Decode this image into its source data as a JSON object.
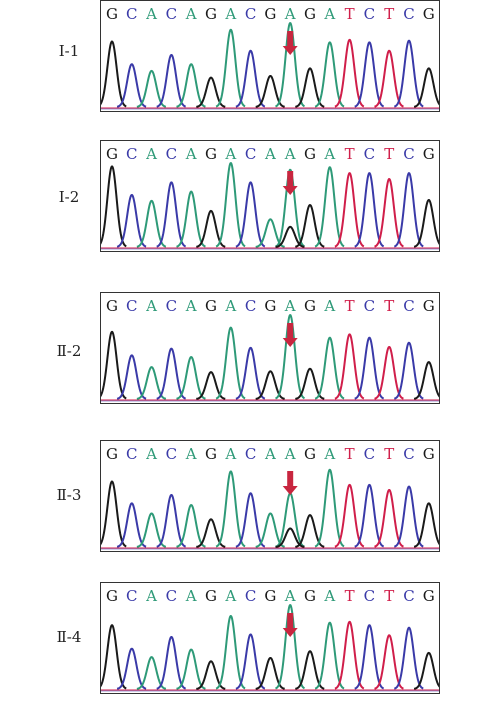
{
  "figure": {
    "colors": {
      "G": "#1a1a1a",
      "A": "#2e9a78",
      "C": "#3a3aa8",
      "T": "#d01e4a",
      "arrow": "#c8263f",
      "baseline_red": "#d01e4a",
      "baseline_blue": "#3a3aa8"
    },
    "icons": {
      "arrow": "arrow-down-icon"
    }
  },
  "chart_data": [
    {
      "type": "line",
      "label": "Ⅰ-1",
      "bases": [
        "G",
        "C",
        "A",
        "C",
        "A",
        "G",
        "A",
        "C",
        "G",
        "A",
        "G",
        "A",
        "T",
        "C",
        "T",
        "C",
        "G"
      ],
      "peak_heights": [
        0.78,
        0.51,
        0.43,
        0.62,
        0.51,
        0.35,
        0.92,
        0.67,
        0.37,
        1.0,
        0.46,
        0.77,
        0.8,
        0.77,
        0.67,
        0.79,
        0.46
      ],
      "secondary_peaks": [],
      "arrow_position": 9
    },
    {
      "type": "line",
      "label": "Ⅰ-2",
      "bases": [
        "G",
        "C",
        "A",
        "C",
        "A",
        "G",
        "A",
        "C",
        "A",
        "A",
        "G",
        "A",
        "T",
        "C",
        "T",
        "C",
        "G"
      ],
      "peak_heights": [
        0.96,
        0.62,
        0.55,
        0.77,
        0.66,
        0.43,
        1.0,
        0.77,
        0.33,
        0.92,
        0.5,
        0.95,
        0.88,
        0.88,
        0.81,
        0.88,
        0.56
      ],
      "secondary_peaks": [
        {
          "position": 9,
          "base": "G",
          "height": 0.24
        }
      ],
      "arrow_position": 9
    },
    {
      "type": "line",
      "label": "Ⅱ-2",
      "bases": [
        "G",
        "C",
        "A",
        "C",
        "A",
        "G",
        "A",
        "C",
        "G",
        "A",
        "G",
        "A",
        "T",
        "C",
        "T",
        "C",
        "G"
      ],
      "peak_heights": [
        0.8,
        0.52,
        0.38,
        0.6,
        0.5,
        0.32,
        0.85,
        0.61,
        0.33,
        1.0,
        0.36,
        0.73,
        0.77,
        0.73,
        0.62,
        0.67,
        0.44
      ],
      "secondary_peaks": [],
      "arrow_position": 9
    },
    {
      "type": "line",
      "label": "Ⅱ-3",
      "bases": [
        "G",
        "C",
        "A",
        "C",
        "A",
        "G",
        "A",
        "C",
        "A",
        "A",
        "G",
        "A",
        "T",
        "C",
        "T",
        "C",
        "G"
      ],
      "peak_heights": [
        0.78,
        0.52,
        0.4,
        0.62,
        0.5,
        0.33,
        0.9,
        0.64,
        0.4,
        0.64,
        0.38,
        0.92,
        0.74,
        0.74,
        0.68,
        0.72,
        0.52
      ],
      "secondary_peaks": [
        {
          "position": 9,
          "base": "G",
          "height": 0.22
        }
      ],
      "arrow_position": 9
    },
    {
      "type": "line",
      "label": "Ⅱ-4",
      "bases": [
        "G",
        "C",
        "A",
        "C",
        "A",
        "G",
        "A",
        "C",
        "G",
        "A",
        "G",
        "A",
        "T",
        "C",
        "T",
        "C",
        "G"
      ],
      "peak_heights": [
        0.76,
        0.48,
        0.38,
        0.62,
        0.47,
        0.33,
        0.87,
        0.65,
        0.37,
        1.0,
        0.45,
        0.79,
        0.8,
        0.76,
        0.64,
        0.73,
        0.43
      ],
      "secondary_peaks": [],
      "arrow_position": 9
    }
  ]
}
